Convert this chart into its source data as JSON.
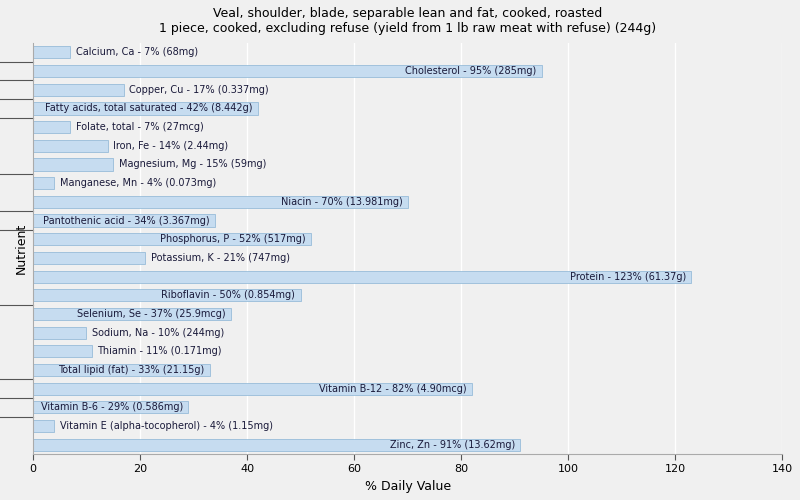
{
  "title": "Veal, shoulder, blade, separable lean and fat, cooked, roasted\n1 piece, cooked, excluding refuse (yield from 1 lb raw meat with refuse) (244g)",
  "xlabel": "% Daily Value",
  "ylabel": "Nutrient",
  "bar_color": "#c6dcf0",
  "bar_edge_color": "#8ab4d4",
  "background_color": "#f0f0f0",
  "xlim": [
    0,
    140
  ],
  "xticks": [
    0,
    20,
    40,
    60,
    80,
    100,
    120,
    140
  ],
  "nutrients": [
    {
      "label": "Calcium, Ca - 7% (68mg)",
      "value": 7
    },
    {
      "label": "Cholesterol - 95% (285mg)",
      "value": 95
    },
    {
      "label": "Copper, Cu - 17% (0.337mg)",
      "value": 17
    },
    {
      "label": "Fatty acids, total saturated - 42% (8.442g)",
      "value": 42
    },
    {
      "label": "Folate, total - 7% (27mcg)",
      "value": 7
    },
    {
      "label": "Iron, Fe - 14% (2.44mg)",
      "value": 14
    },
    {
      "label": "Magnesium, Mg - 15% (59mg)",
      "value": 15
    },
    {
      "label": "Manganese, Mn - 4% (0.073mg)",
      "value": 4
    },
    {
      "label": "Niacin - 70% (13.981mg)",
      "value": 70
    },
    {
      "label": "Pantothenic acid - 34% (3.367mg)",
      "value": 34
    },
    {
      "label": "Phosphorus, P - 52% (517mg)",
      "value": 52
    },
    {
      "label": "Potassium, K - 21% (747mg)",
      "value": 21
    },
    {
      "label": "Protein - 123% (61.37g)",
      "value": 123
    },
    {
      "label": "Riboflavin - 50% (0.854mg)",
      "value": 50
    },
    {
      "label": "Selenium, Se - 37% (25.9mcg)",
      "value": 37
    },
    {
      "label": "Sodium, Na - 10% (244mg)",
      "value": 10
    },
    {
      "label": "Thiamin - 11% (0.171mg)",
      "value": 11
    },
    {
      "label": "Total lipid (fat) - 33% (21.15g)",
      "value": 33
    },
    {
      "label": "Vitamin B-12 - 82% (4.90mcg)",
      "value": 82
    },
    {
      "label": "Vitamin B-6 - 29% (0.586mg)",
      "value": 29
    },
    {
      "label": "Vitamin E (alpha-tocopherol) - 4% (1.15mg)",
      "value": 4
    },
    {
      "label": "Zinc, Zn - 91% (13.62mg)",
      "value": 91
    }
  ],
  "label_threshold": 25,
  "text_color": "#1a1a3a",
  "text_fontsize": 7.0,
  "group_tick_positions": [
    0.5,
    2.5,
    4.5,
    7.5,
    11.5,
    12.5,
    14.5,
    16.5,
    17.5,
    18.5,
    19.5,
    20.5,
    21.5
  ]
}
